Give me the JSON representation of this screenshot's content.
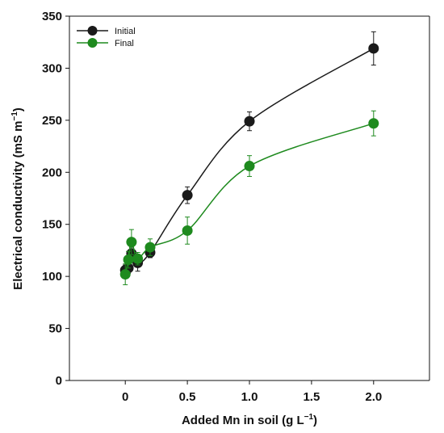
{
  "chart_data": {
    "type": "line",
    "xlabel": "Added Mn in soil (g L",
    "xlabel_sup": "−1",
    "xlabel_tail": ")",
    "ylabel": "Electrical conductivity (mS m",
    "ylabel_sup": "−1",
    "ylabel_tail": ")",
    "xlim": [
      -0.45,
      2.45
    ],
    "ylim": [
      0,
      350
    ],
    "x_ticks": [
      {
        "value": 0,
        "label": "0"
      },
      {
        "value": 0.5,
        "label": "0.5"
      },
      {
        "value": 1.0,
        "label": "1.0"
      },
      {
        "value": 1.5,
        "label": "1.5"
      },
      {
        "value": 2.0,
        "label": "2.0"
      }
    ],
    "y_ticks": [
      0,
      50,
      100,
      150,
      200,
      250,
      300,
      350
    ],
    "legend_position": "top-left",
    "grid": false,
    "series": [
      {
        "name": "Initial",
        "color": "#1a1a1a",
        "x": [
          0,
          0.025,
          0.05,
          0.1,
          0.2,
          0.5,
          1.0,
          2.0
        ],
        "y": [
          106,
          108,
          122,
          113,
          123,
          178,
          249,
          319
        ],
        "err": [
          5,
          5,
          6,
          8,
          5,
          8,
          9,
          16
        ]
      },
      {
        "name": "Final",
        "color": "#1e8a1e",
        "x": [
          0,
          0.025,
          0.05,
          0.1,
          0.2,
          0.5,
          1.0,
          2.0
        ],
        "y": [
          102,
          116,
          133,
          117,
          128,
          144,
          206,
          247
        ],
        "err": [
          10,
          8,
          12,
          6,
          8,
          13,
          10,
          12
        ]
      }
    ]
  }
}
